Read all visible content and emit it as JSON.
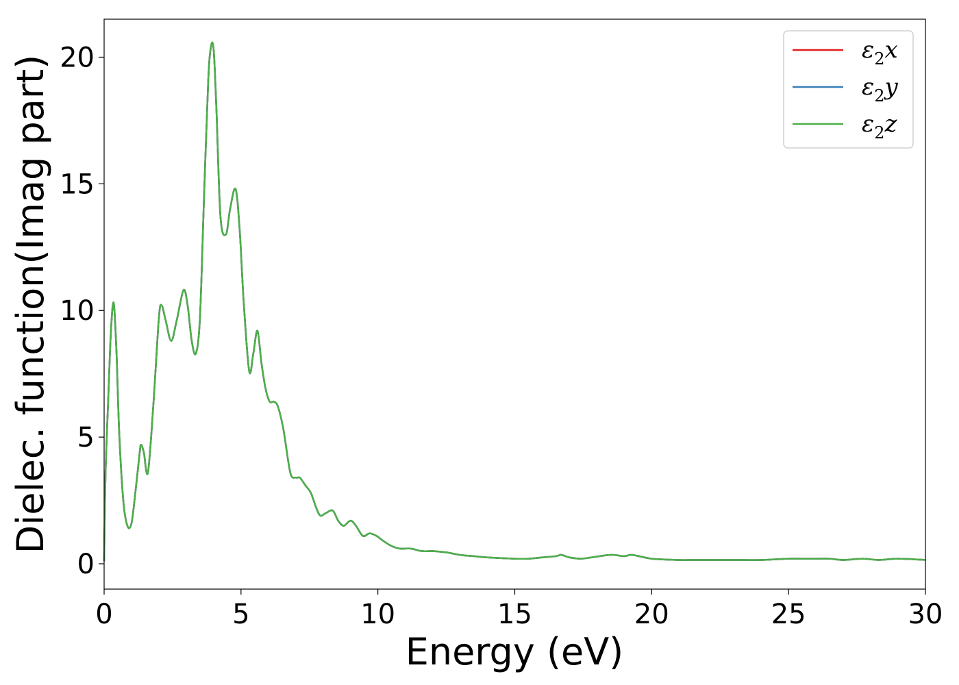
{
  "chart_data": {
    "type": "line",
    "xlabel": "Energy (eV)",
    "ylabel": "Dielec. function(Imag part)",
    "xlim": [
      0,
      30
    ],
    "ylim": [
      -1,
      21.5
    ],
    "xticks": [
      0,
      5,
      10,
      15,
      20,
      25,
      30
    ],
    "xtick_labels": [
      "0",
      "5",
      "10",
      "15",
      "20",
      "25",
      "30"
    ],
    "yticks": [
      0,
      5,
      10,
      15,
      20
    ],
    "ytick_labels": [
      "0",
      "5",
      "10",
      "15",
      "20"
    ],
    "grid": false,
    "legend_position": "top-right",
    "x": [
      0,
      0.05,
      0.15,
      0.25,
      0.35,
      0.45,
      0.55,
      0.7,
      0.85,
      1.0,
      1.15,
      1.3,
      1.35,
      1.45,
      1.6,
      1.8,
      2.0,
      2.1,
      2.25,
      2.45,
      2.65,
      2.9,
      3.05,
      3.2,
      3.35,
      3.5,
      3.65,
      3.8,
      3.9,
      4.0,
      4.1,
      4.25,
      4.45,
      4.6,
      4.8,
      4.95,
      5.1,
      5.3,
      5.45,
      5.6,
      5.75,
      5.9,
      6.05,
      6.2,
      6.35,
      6.55,
      6.8,
      7.0,
      7.15,
      7.35,
      7.55,
      7.75,
      7.9,
      8.1,
      8.35,
      8.55,
      8.75,
      9.0,
      9.2,
      9.45,
      9.7,
      9.95,
      10.2,
      10.5,
      10.8,
      11.2,
      11.6,
      12.0,
      12.5,
      13.0,
      13.5,
      14.0,
      15.0,
      15.5,
      16.0,
      16.5,
      16.7,
      17.0,
      17.4,
      17.8,
      18.5,
      19.0,
      19.3,
      20.0,
      21.0,
      21.5,
      22.0,
      23.0,
      24.0,
      25.0,
      25.5,
      26.0,
      26.5,
      27.0,
      27.7,
      28.3,
      29.0,
      30.0
    ],
    "series": [
      {
        "name": "ε2x",
        "color": "#e41a1c",
        "y": [
          0.1,
          3.5,
          6.5,
          9.2,
          10.3,
          8.4,
          5.2,
          2.5,
          1.5,
          1.6,
          2.9,
          4.4,
          4.7,
          4.4,
          3.6,
          6.3,
          9.7,
          10.2,
          9.6,
          8.8,
          9.6,
          10.8,
          10.2,
          8.8,
          8.3,
          9.7,
          14.5,
          19.0,
          20.4,
          20.3,
          18.0,
          13.7,
          13.0,
          14.0,
          14.8,
          13.2,
          10.3,
          7.6,
          8.3,
          9.2,
          7.9,
          6.9,
          6.4,
          6.4,
          6.2,
          5.3,
          3.6,
          3.4,
          3.4,
          3.1,
          2.8,
          2.2,
          1.9,
          2.0,
          2.1,
          1.7,
          1.5,
          1.7,
          1.5,
          1.1,
          1.2,
          1.1,
          0.9,
          0.7,
          0.6,
          0.6,
          0.5,
          0.5,
          0.45,
          0.35,
          0.3,
          0.25,
          0.2,
          0.2,
          0.25,
          0.3,
          0.35,
          0.25,
          0.2,
          0.25,
          0.35,
          0.3,
          0.35,
          0.2,
          0.15,
          0.15,
          0.15,
          0.15,
          0.15,
          0.2,
          0.2,
          0.2,
          0.2,
          0.15,
          0.2,
          0.15,
          0.2,
          0.15
        ]
      },
      {
        "name": "ε2y",
        "color": "#377eb8",
        "y": [
          0.1,
          3.5,
          6.5,
          9.2,
          10.3,
          8.4,
          5.2,
          2.5,
          1.5,
          1.6,
          2.9,
          4.4,
          4.7,
          4.4,
          3.6,
          6.3,
          9.7,
          10.2,
          9.6,
          8.8,
          9.6,
          10.8,
          10.2,
          8.8,
          8.3,
          9.7,
          14.5,
          19.0,
          20.4,
          20.3,
          18.0,
          13.7,
          13.0,
          14.0,
          14.8,
          13.2,
          10.3,
          7.6,
          8.3,
          9.2,
          7.9,
          6.9,
          6.4,
          6.4,
          6.2,
          5.3,
          3.6,
          3.4,
          3.4,
          3.1,
          2.8,
          2.2,
          1.9,
          2.0,
          2.1,
          1.7,
          1.5,
          1.7,
          1.5,
          1.1,
          1.2,
          1.1,
          0.9,
          0.7,
          0.6,
          0.6,
          0.5,
          0.5,
          0.45,
          0.35,
          0.3,
          0.25,
          0.2,
          0.2,
          0.25,
          0.3,
          0.35,
          0.25,
          0.2,
          0.25,
          0.35,
          0.3,
          0.35,
          0.2,
          0.15,
          0.15,
          0.15,
          0.15,
          0.15,
          0.2,
          0.2,
          0.2,
          0.2,
          0.15,
          0.2,
          0.15,
          0.2,
          0.15
        ]
      },
      {
        "name": "ε2z",
        "color": "#4daf4a",
        "y": [
          0.1,
          3.5,
          6.5,
          9.2,
          10.3,
          8.4,
          5.2,
          2.5,
          1.5,
          1.6,
          2.9,
          4.4,
          4.7,
          4.4,
          3.6,
          6.3,
          9.7,
          10.2,
          9.6,
          8.8,
          9.6,
          10.8,
          10.2,
          8.8,
          8.3,
          9.7,
          14.5,
          19.0,
          20.4,
          20.3,
          18.0,
          13.7,
          13.0,
          14.0,
          14.8,
          13.2,
          10.3,
          7.6,
          8.3,
          9.2,
          7.9,
          6.9,
          6.4,
          6.4,
          6.2,
          5.3,
          3.6,
          3.4,
          3.4,
          3.1,
          2.8,
          2.2,
          1.9,
          2.0,
          2.1,
          1.7,
          1.5,
          1.7,
          1.5,
          1.1,
          1.2,
          1.1,
          0.9,
          0.7,
          0.6,
          0.6,
          0.5,
          0.5,
          0.45,
          0.35,
          0.3,
          0.25,
          0.2,
          0.2,
          0.25,
          0.3,
          0.35,
          0.25,
          0.2,
          0.25,
          0.35,
          0.3,
          0.35,
          0.2,
          0.15,
          0.15,
          0.15,
          0.15,
          0.15,
          0.2,
          0.2,
          0.2,
          0.2,
          0.15,
          0.2,
          0.15,
          0.2,
          0.15
        ]
      }
    ],
    "legend": [
      {
        "base": "ε",
        "sub": "2",
        "tail": "x"
      },
      {
        "base": "ε",
        "sub": "2",
        "tail": "y"
      },
      {
        "base": "ε",
        "sub": "2",
        "tail": "z"
      }
    ]
  }
}
